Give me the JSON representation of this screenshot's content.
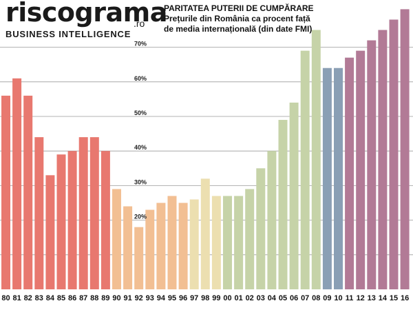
{
  "logo": {
    "brand": "riscograma",
    "tld": ".ro",
    "tagline": "BUSINESS INTELLIGENCE"
  },
  "colors": {
    "red": "#e8786f",
    "orange": "#f2bf93",
    "sand": "#ecdfb0",
    "green": "#c6d3a8",
    "blue": "#8a9fb5",
    "purple": "#b27a96",
    "grid": "#9a9a9a"
  },
  "chart_data": {
    "type": "bar",
    "title": "PARITATEA PUTERII DE CUMPĂRARE",
    "subtitle_line1": "Prețurile din România ca procent față",
    "subtitle_line2": "de media internațională (din date FMI)",
    "ylim": [
      0,
      80
    ],
    "y_ticks": [
      20,
      30,
      40,
      50,
      60,
      70
    ],
    "y_tick_labels": [
      "20%",
      "30%",
      "40%",
      "50%",
      "60%",
      "70%"
    ],
    "gridlines": [
      10,
      20,
      30,
      40,
      50,
      60,
      70
    ],
    "categories": [
      "80",
      "81",
      "82",
      "83",
      "84",
      "85",
      "86",
      "87",
      "88",
      "89",
      "90",
      "91",
      "92",
      "93",
      "94",
      "95",
      "96",
      "97",
      "98",
      "99",
      "00",
      "01",
      "02",
      "03",
      "04",
      "05",
      "06",
      "07",
      "08",
      "09",
      "10",
      "11",
      "12",
      "13",
      "14",
      "15",
      "16"
    ],
    "values": [
      56,
      61,
      56,
      44,
      33,
      39,
      40,
      44,
      44,
      40,
      29,
      24,
      18,
      23,
      25,
      27,
      25,
      26,
      32,
      27,
      27,
      27,
      29,
      35,
      40,
      49,
      54,
      69,
      75,
      64,
      64,
      67,
      69,
      72,
      75,
      78,
      81
    ],
    "bar_colors": [
      "red",
      "red",
      "red",
      "red",
      "red",
      "red",
      "red",
      "red",
      "red",
      "red",
      "orange",
      "orange",
      "orange",
      "orange",
      "orange",
      "orange",
      "orange",
      "sand",
      "sand",
      "sand",
      "green",
      "green",
      "green",
      "green",
      "green",
      "green",
      "green",
      "green",
      "green",
      "blue",
      "blue",
      "purple",
      "purple",
      "purple",
      "purple",
      "purple",
      "purple"
    ]
  }
}
